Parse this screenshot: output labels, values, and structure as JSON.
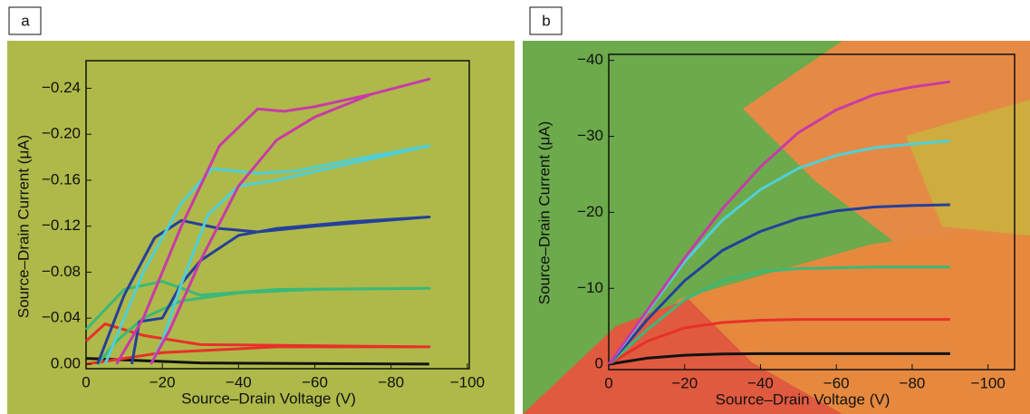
{
  "chart_data": [
    {
      "type": "line",
      "panel": "a",
      "xlabel": "Source–Drain Voltage (V)",
      "ylabel": "Source–Drain Current (μA)",
      "xlim": [
        0,
        -100.5
      ],
      "ylim": [
        0.004,
        -0.264
      ],
      "xticks": [
        0,
        {
          "value": -20,
          "label": "−20"
        },
        {
          "value": -40,
          "label": "−40"
        },
        {
          "value": -60,
          "label": "−60"
        },
        {
          "value": -80,
          "label": "−80"
        },
        {
          "value": -100,
          "label": "−100"
        }
      ],
      "yticks": [
        {
          "value": 0,
          "label": "0.00"
        },
        {
          "value": -0.04,
          "label": "−0.04"
        },
        {
          "value": -0.08,
          "label": "−0.08"
        },
        {
          "value": -0.12,
          "label": "−0.12"
        },
        {
          "value": -0.16,
          "label": "−0.16"
        },
        {
          "value": -0.2,
          "label": "−0.20"
        },
        {
          "value": -0.24,
          "label": "−0.24"
        }
      ],
      "series": [
        {
          "color": "#111111",
          "x": [
            0,
            -30,
            -90
          ],
          "values": [
            -0.005,
            -0.001,
            0
          ]
        },
        {
          "color": "#e8302a",
          "x": [
            0,
            -5,
            -15,
            -30,
            -90,
            -50,
            -20,
            -10,
            0
          ],
          "values": [
            -0.02,
            -0.035,
            -0.025,
            -0.017,
            -0.015,
            -0.015,
            -0.01,
            -0.005,
            0
          ]
        },
        {
          "color": "#3cb878",
          "x": [
            0,
            -10,
            -20,
            -30,
            -50,
            -90,
            -60,
            -40,
            -25,
            -15,
            -8,
            -3
          ],
          "values": [
            -0.03,
            -0.065,
            -0.072,
            -0.06,
            -0.065,
            -0.066,
            -0.065,
            -0.062,
            -0.055,
            -0.04,
            -0.02,
            0
          ]
        },
        {
          "color": "#25409a",
          "x": [
            -3,
            -10,
            -18,
            -25,
            -35,
            -45,
            -60,
            -90,
            -70,
            -50,
            -40,
            -30,
            -25,
            -20,
            -14,
            -12
          ],
          "values": [
            0,
            -0.06,
            -0.11,
            -0.125,
            -0.118,
            -0.115,
            -0.12,
            -0.128,
            -0.124,
            -0.118,
            -0.112,
            -0.09,
            -0.07,
            -0.04,
            -0.037,
            0
          ]
        },
        {
          "color": "#4fd0d8",
          "x": [
            -5,
            -15,
            -25,
            -33,
            -45,
            -55,
            -70,
            -90,
            -70,
            -50,
            -40,
            -32,
            -25,
            -20,
            -17
          ],
          "values": [
            0,
            -0.08,
            -0.14,
            -0.17,
            -0.166,
            -0.168,
            -0.178,
            -0.19,
            -0.175,
            -0.16,
            -0.155,
            -0.13,
            -0.07,
            -0.02,
            0
          ]
        },
        {
          "color": "#c83aa8",
          "x": [
            -8,
            -15,
            -25,
            -35,
            -45,
            -52,
            -60,
            -75,
            -90,
            -75,
            -60,
            -50,
            -40,
            -30,
            -22,
            -17
          ],
          "values": [
            0,
            -0.04,
            -0.12,
            -0.19,
            -0.222,
            -0.22,
            -0.224,
            -0.235,
            -0.248,
            -0.235,
            -0.215,
            -0.195,
            -0.155,
            -0.09,
            -0.03,
            0
          ]
        }
      ]
    },
    {
      "type": "line",
      "panel": "b",
      "xlabel": "Source–Drain Voltage (V)",
      "ylabel": "Source–Drain Current (μA)",
      "xlim": [
        0,
        -107
      ],
      "ylim": [
        0.7,
        -40.8
      ],
      "xticks": [
        0,
        {
          "value": -20,
          "label": "−20"
        },
        {
          "value": -40,
          "label": "−40"
        },
        {
          "value": -60,
          "label": "−60"
        },
        {
          "value": -80,
          "label": "−80"
        },
        {
          "value": -100,
          "label": "−100"
        }
      ],
      "yticks": [
        0,
        {
          "value": -10,
          "label": "−10"
        },
        {
          "value": -20,
          "label": "−20"
        },
        {
          "value": -30,
          "label": "−30"
        },
        {
          "value": -40,
          "label": "−40"
        }
      ],
      "series": [
        {
          "color": "#111111",
          "x": [
            0,
            -5,
            -10,
            -20,
            -30,
            -40,
            -50,
            -60,
            -70,
            -80,
            -90
          ],
          "values": [
            0,
            -0.4,
            -0.8,
            -1.2,
            -1.35,
            -1.4,
            -1.4,
            -1.4,
            -1.4,
            -1.4,
            -1.4
          ]
        },
        {
          "color": "#e8302a",
          "x": [
            0,
            -5,
            -10,
            -20,
            -30,
            -40,
            -50,
            -60,
            -70,
            -80,
            -90
          ],
          "values": [
            0,
            -1.5,
            -3,
            -4.8,
            -5.5,
            -5.8,
            -5.9,
            -5.9,
            -5.9,
            -5.9,
            -5.9
          ]
        },
        {
          "color": "#3cb878",
          "x": [
            0,
            -5,
            -10,
            -20,
            -30,
            -40,
            -50,
            -60,
            -70,
            -80,
            -90
          ],
          "values": [
            0,
            -2.2,
            -4.5,
            -8.5,
            -11,
            -12.2,
            -12.6,
            -12.7,
            -12.8,
            -12.8,
            -12.8
          ]
        },
        {
          "color": "#25409a",
          "x": [
            0,
            -5,
            -10,
            -20,
            -30,
            -40,
            -50,
            -60,
            -70,
            -80,
            -90
          ],
          "values": [
            0,
            -2.8,
            -5.8,
            -11,
            -15,
            -17.5,
            -19.2,
            -20.2,
            -20.7,
            -20.9,
            -21
          ]
        },
        {
          "color": "#4fd0d8",
          "x": [
            0,
            -5,
            -10,
            -20,
            -30,
            -40,
            -50,
            -60,
            -70,
            -80,
            -90
          ],
          "values": [
            0,
            -3.3,
            -6.8,
            -13.5,
            -19,
            -23,
            -25.8,
            -27.5,
            -28.5,
            -29,
            -29.4
          ]
        },
        {
          "color": "#c83aa8",
          "x": [
            0,
            -5,
            -10,
            -20,
            -30,
            -40,
            -50,
            -60,
            -70,
            -80,
            -90
          ],
          "values": [
            0,
            -3.5,
            -7,
            -14,
            -20.5,
            -26,
            -30.5,
            -33.5,
            -35.5,
            -36.5,
            -37.2
          ]
        }
      ]
    }
  ]
}
